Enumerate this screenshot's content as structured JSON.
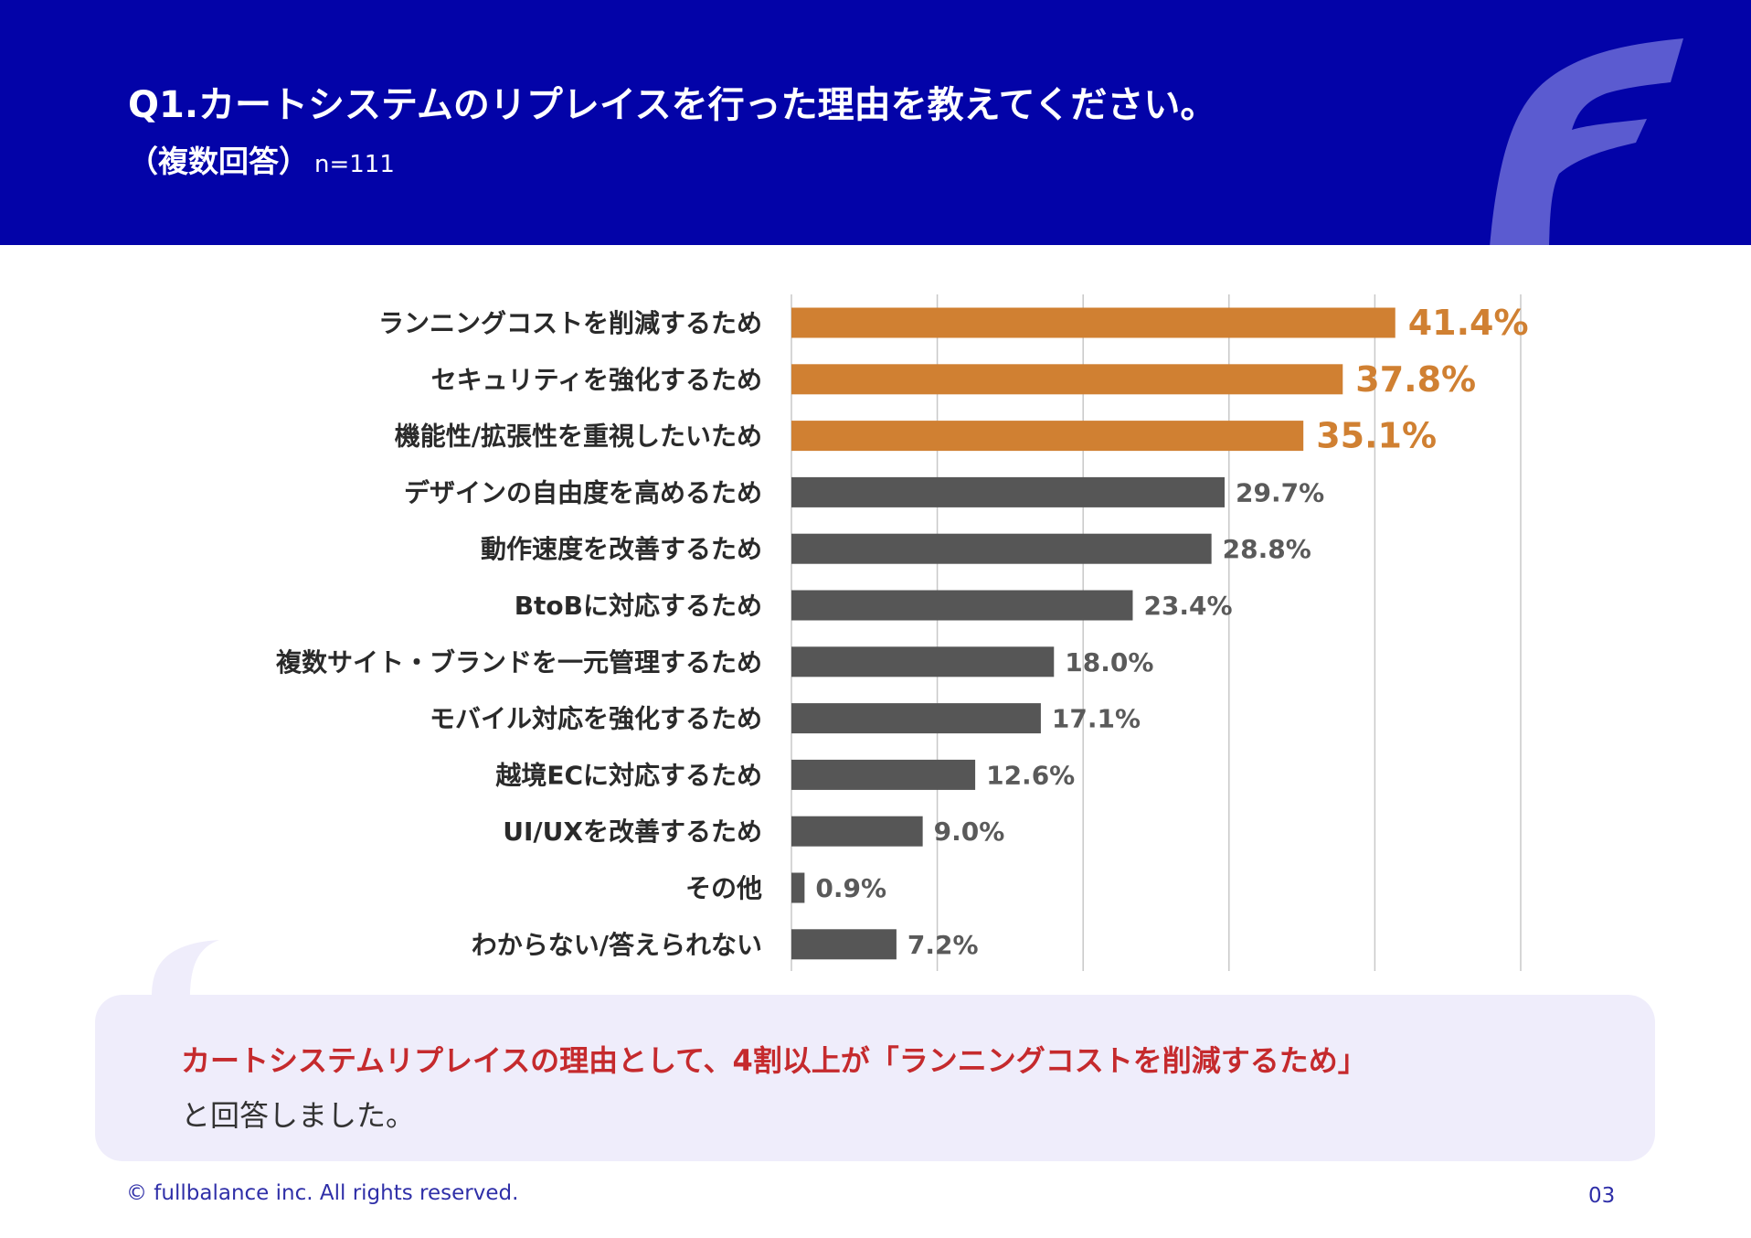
{
  "header": {
    "title": "Q1.カートシステムのリプレイスを行った理由を教えてください。",
    "subtitle": "（複数回答）",
    "sample": "n=111"
  },
  "colors": {
    "header_bg": "#0303a8",
    "highlight": "#d08032",
    "bar": "#565656",
    "accent_red": "#c52a2d"
  },
  "chart_data": {
    "type": "bar",
    "orientation": "horizontal",
    "categories": [
      "ランニングコストを削減するため",
      "セキュリティを強化するため",
      "機能性/拡張性を重視したいため",
      "デザインの自由度を高めるため",
      "動作速度を改善するため",
      "BtoBに対応するため",
      "複数サイト・ブランドを一元管理するため",
      "モバイル対応を強化するため",
      "越境ECに対応するため",
      "UI/UXを改善するため",
      "その他",
      "わからない/答えられない"
    ],
    "values": [
      41.4,
      37.8,
      35.1,
      29.7,
      28.8,
      23.4,
      18.0,
      17.1,
      12.6,
      9.0,
      0.9,
      7.2
    ],
    "value_labels": [
      "41.4%",
      "37.8%",
      "35.1%",
      "29.7%",
      "28.8%",
      "23.4%",
      "18.0%",
      "17.1%",
      "12.6%",
      "9.0%",
      "0.9%",
      "7.2%"
    ],
    "highlighted_count": 3,
    "xlim": [
      0,
      50
    ],
    "grid": true,
    "title": "",
    "xlabel": "",
    "ylabel": ""
  },
  "callout": {
    "highlight": "カートシステムリプレイスの理由として、4割以上が「ランニングコストを削減するため」",
    "rest": "と回答しました。"
  },
  "footer": {
    "copyright": "© fullbalance inc. All rights reserved.",
    "page": "03"
  }
}
